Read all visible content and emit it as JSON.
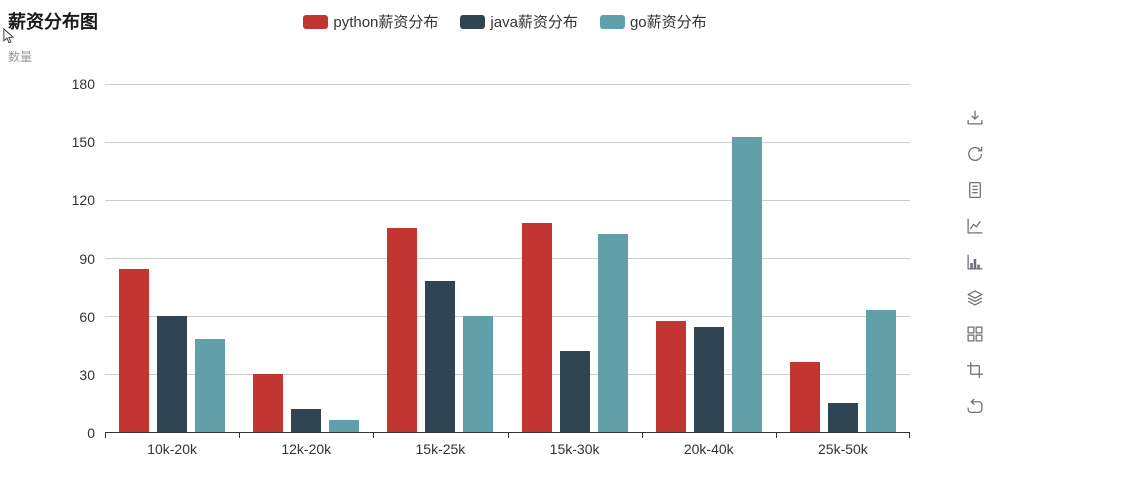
{
  "chart_data": {
    "type": "bar",
    "title": "薪资分布图",
    "ylabel": "数量",
    "xlabel": "",
    "categories": [
      "10k-20k",
      "12k-20k",
      "15k-25k",
      "15k-30k",
      "20k-40k",
      "25k-50k"
    ],
    "series": [
      {
        "id": "python",
        "name": "python薪资分布",
        "color": "#c23531",
        "values": [
          84,
          30,
          105,
          108,
          57,
          36
        ]
      },
      {
        "id": "java",
        "name": "java薪资分布",
        "color": "#2f4554",
        "values": [
          60,
          12,
          78,
          42,
          54,
          15
        ]
      },
      {
        "id": "go",
        "name": "go薪资分布",
        "color": "#61a0a8",
        "values": [
          48,
          6,
          60,
          102,
          152,
          63
        ]
      }
    ],
    "ylim": [
      0,
      180
    ],
    "yticks": [
      0,
      30,
      60,
      90,
      120,
      150,
      180
    ],
    "grid": true,
    "legend_position": "top-center"
  },
  "toolbox": {
    "icons": [
      "save-as-image",
      "restore",
      "data-view",
      "switch-to-line-chart",
      "switch-to-bar-chart",
      "stack",
      "tiled",
      "data-zoom",
      "zoom-reset"
    ]
  },
  "colors": {
    "axis": "#333333",
    "gridline": "#cccccc",
    "tick_label": "#333333",
    "axis_name": "#9b9b9b",
    "toolbox_icon": "#6e7079"
  }
}
